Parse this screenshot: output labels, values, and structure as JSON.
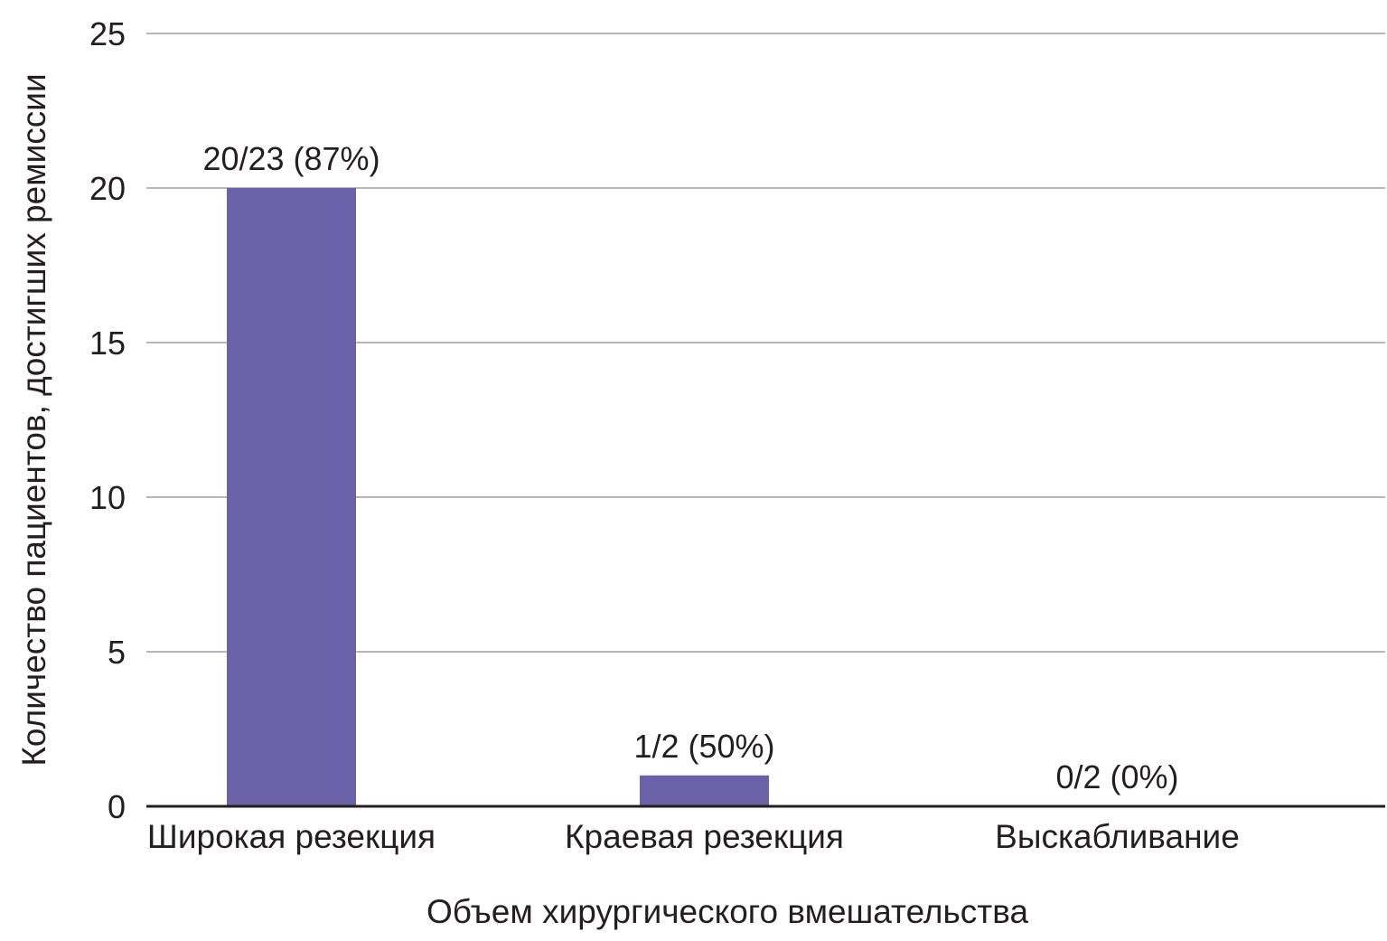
{
  "chart_data": {
    "type": "bar",
    "categories": [
      "Широкая резекция",
      "Краевая резекция",
      "Выскабливание"
    ],
    "values": [
      20,
      1,
      0
    ],
    "data_labels": [
      "20/23 (87%)",
      "1/2 (50%)",
      "0/2 (0%)"
    ],
    "xlabel": "Объем хирургического вмешательства",
    "ylabel": "Количество пациентов, достигших ремиссии",
    "ylim": [
      0,
      25
    ],
    "yticks": [
      0,
      5,
      10,
      15,
      20,
      25
    ],
    "grid": true,
    "legend": "none",
    "bar_color": "#6962a8"
  }
}
